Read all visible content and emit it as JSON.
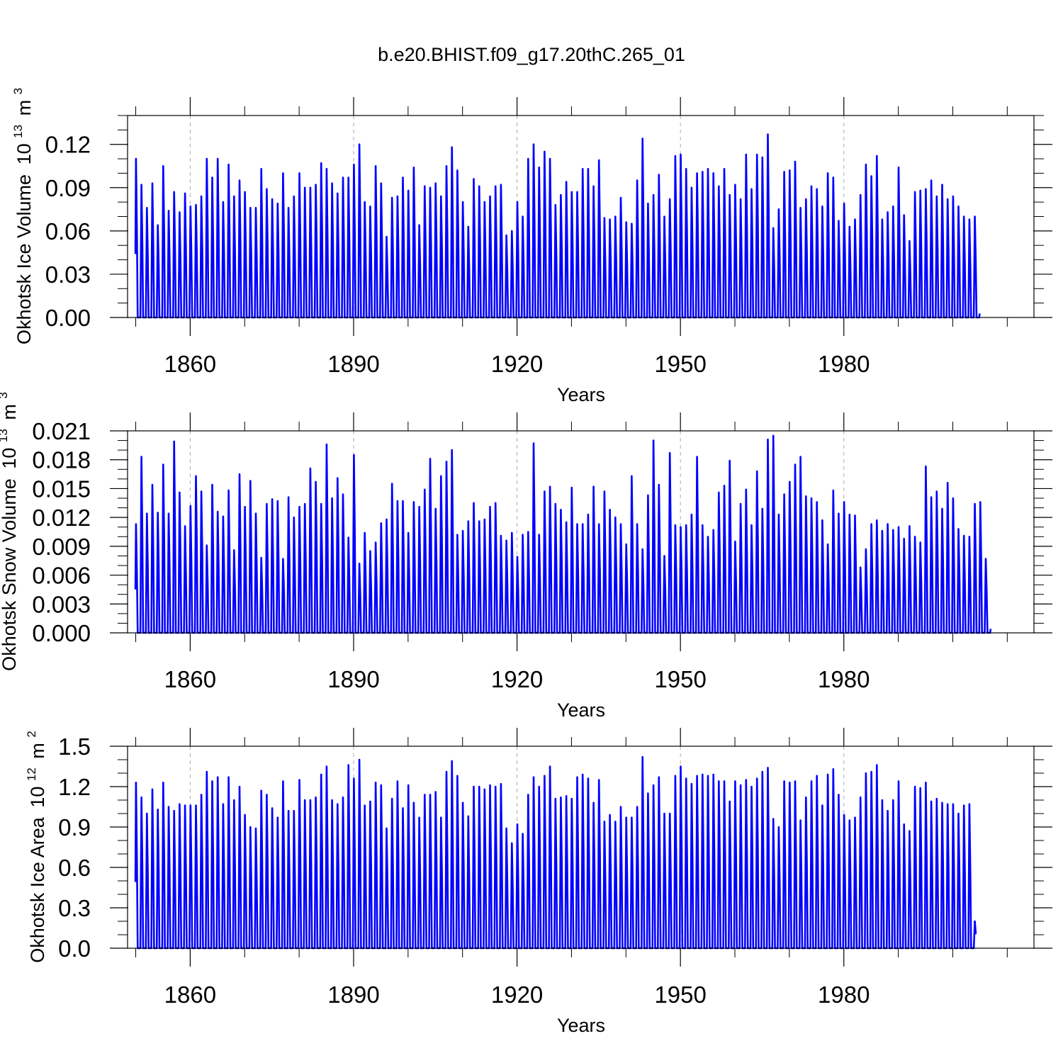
{
  "figure": {
    "title": "b.e20.BHIST.f09_g17.20thC.265_01",
    "series_color": "#0000ff",
    "gridline_color": "#aaaaaa"
  },
  "chart_data": [
    {
      "type": "line",
      "title": "",
      "xlabel": "Years",
      "ylabel": "Okhotsk Ice Volume",
      "ylabel_unit_base": "10",
      "ylabel_unit_exp": "13",
      "ylabel_unit_sym": "m",
      "ylabel_unit_sym_exp": "3",
      "grid": "vertical dashed at major x ticks",
      "legend": "none",
      "xlim": [
        1848.5,
        2014.9
      ],
      "ylim": [
        0.0,
        0.14
      ],
      "x_ticks": [
        1860,
        1890,
        1920,
        1950,
        1980
      ],
      "x_ticklabels": [
        "1860",
        "1890",
        "1920",
        "1950",
        "1980"
      ],
      "y_ticks": [
        0.0,
        0.03,
        0.06,
        0.09,
        0.12
      ],
      "y_ticklabels": [
        "0.00",
        "0.03",
        "0.06",
        "0.09",
        "0.12"
      ],
      "series": [
        {
          "x_start_year": 1850,
          "note_monthly_seasonal_cycle": true,
          "annual_max": [
            0.11,
            0.092,
            0.076,
            0.093,
            0.064,
            0.105,
            0.074,
            0.087,
            0.073,
            0.086,
            0.077,
            0.078,
            0.084,
            0.11,
            0.097,
            0.11,
            0.08,
            0.106,
            0.084,
            0.095,
            0.087,
            0.076,
            0.076,
            0.103,
            0.089,
            0.082,
            0.079,
            0.1,
            0.076,
            0.084,
            0.1,
            0.09,
            0.09,
            0.092,
            0.107,
            0.103,
            0.093,
            0.086,
            0.097,
            0.097,
            0.106,
            0.12,
            0.08,
            0.077,
            0.105,
            0.093,
            0.056,
            0.083,
            0.084,
            0.097,
            0.088,
            0.104,
            0.064,
            0.091,
            0.09,
            0.093,
            0.084,
            0.105,
            0.118,
            0.102,
            0.08,
            0.063,
            0.096,
            0.091,
            0.08,
            0.084,
            0.091,
            0.092,
            0.057,
            0.06,
            0.08,
            0.07,
            0.11,
            0.12,
            0.104,
            0.115,
            0.11,
            0.078,
            0.085,
            0.094,
            0.087,
            0.087,
            0.103,
            0.103,
            0.091,
            0.109,
            0.069,
            0.068,
            0.07,
            0.083,
            0.066,
            0.065,
            0.095,
            0.124,
            0.079,
            0.085,
            0.099,
            0.07,
            0.082,
            0.112,
            0.113,
            0.103,
            0.09,
            0.1,
            0.101,
            0.103,
            0.1,
            0.091,
            0.103,
            0.085,
            0.092,
            0.082,
            0.113,
            0.089,
            0.113,
            0.111,
            0.127,
            0.062,
            0.075,
            0.101,
            0.102,
            0.108,
            0.076,
            0.082,
            0.091,
            0.089,
            0.077,
            0.1,
            0.097,
            0.067,
            0.079,
            0.063,
            0.068,
            0.085,
            0.106,
            0.098,
            0.112,
            0.068,
            0.073,
            0.077,
            0.104,
            0.071,
            0.053,
            0.087,
            0.088,
            0.089,
            0.095,
            0.084,
            0.092,
            0.082,
            0.084,
            0.077,
            0.07,
            0.068,
            0.07
          ]
        }
      ]
    },
    {
      "type": "line",
      "title": "",
      "xlabel": "Years",
      "ylabel": "Okhotsk Snow Volume",
      "ylabel_unit_base": "10",
      "ylabel_unit_exp": "13",
      "ylabel_unit_sym": "m",
      "ylabel_unit_sym_exp": "3",
      "grid": "vertical dashed at major x ticks",
      "legend": "none",
      "xlim": [
        1848.5,
        2014.9
      ],
      "ylim": [
        0.0,
        0.021
      ],
      "x_ticks": [
        1860,
        1890,
        1920,
        1950,
        1980
      ],
      "x_ticklabels": [
        "1860",
        "1890",
        "1920",
        "1950",
        "1980"
      ],
      "y_ticks": [
        0.0,
        0.003,
        0.006,
        0.009,
        0.012,
        0.015,
        0.018,
        0.021
      ],
      "y_ticklabels": [
        "0.000",
        "0.003",
        "0.006",
        "0.009",
        "0.012",
        "0.015",
        "0.018",
        "0.021"
      ],
      "series": [
        {
          "x_start_year": 1850,
          "note_monthly_seasonal_cycle": true,
          "annual_max": [
            0.0113,
            0.0183,
            0.0124,
            0.0154,
            0.0125,
            0.0175,
            0.0124,
            0.0199,
            0.0146,
            0.0111,
            0.0132,
            0.0163,
            0.0147,
            0.0091,
            0.0154,
            0.0126,
            0.0121,
            0.0148,
            0.0086,
            0.0165,
            0.0131,
            0.0158,
            0.0124,
            0.0078,
            0.0134,
            0.0139,
            0.0137,
            0.0077,
            0.0141,
            0.012,
            0.0131,
            0.0134,
            0.0171,
            0.0157,
            0.0134,
            0.0196,
            0.014,
            0.0161,
            0.0144,
            0.0099,
            0.0185,
            0.0072,
            0.0104,
            0.0085,
            0.0094,
            0.0114,
            0.0118,
            0.0155,
            0.0137,
            0.0137,
            0.0104,
            0.0136,
            0.0131,
            0.0149,
            0.0181,
            0.0129,
            0.0163,
            0.0178,
            0.019,
            0.0102,
            0.0106,
            0.0116,
            0.0135,
            0.0116,
            0.0118,
            0.0131,
            0.0135,
            0.0101,
            0.0096,
            0.0104,
            0.0079,
            0.0102,
            0.0105,
            0.0197,
            0.0102,
            0.0147,
            0.0152,
            0.0134,
            0.0128,
            0.0115,
            0.0151,
            0.0113,
            0.0113,
            0.0123,
            0.0152,
            0.0113,
            0.0147,
            0.0128,
            0.012,
            0.0113,
            0.0092,
            0.0163,
            0.0113,
            0.0087,
            0.0143,
            0.02,
            0.0154,
            0.008,
            0.0187,
            0.0112,
            0.011,
            0.0112,
            0.0123,
            0.0183,
            0.0112,
            0.01,
            0.0107,
            0.0146,
            0.0153,
            0.0179,
            0.0095,
            0.0134,
            0.0149,
            0.0112,
            0.0168,
            0.0129,
            0.0201,
            0.0205,
            0.0123,
            0.0144,
            0.0157,
            0.0175,
            0.0183,
            0.0142,
            0.014,
            0.0136,
            0.0117,
            0.0092,
            0.0148,
            0.0124,
            0.0136,
            0.0123,
            0.0122,
            0.0068,
            0.0087,
            0.0113,
            0.0117,
            0.0106,
            0.0113,
            0.0107,
            0.011,
            0.0098,
            0.0111,
            0.01,
            0.0094,
            0.0173,
            0.0141,
            0.0147,
            0.0129,
            0.0156,
            0.014,
            0.0108,
            0.0101,
            0.01,
            0.0134,
            0.0136,
            0.0077
          ]
        }
      ]
    },
    {
      "type": "line",
      "title": "",
      "xlabel": "Years",
      "ylabel": "Okhotsk Ice Area",
      "ylabel_unit_base": "10",
      "ylabel_unit_exp": "12",
      "ylabel_unit_sym": "m",
      "ylabel_unit_sym_exp": "2",
      "grid": "vertical dashed at major x ticks",
      "legend": "none",
      "xlim": [
        1848.5,
        2014.9
      ],
      "ylim": [
        0.0,
        1.5
      ],
      "x_ticks": [
        1860,
        1890,
        1920,
        1950,
        1980
      ],
      "x_ticklabels": [
        "1860",
        "1890",
        "1920",
        "1950",
        "1980"
      ],
      "y_ticks": [
        0.0,
        0.3,
        0.6,
        0.9,
        1.2,
        1.5
      ],
      "y_ticklabels": [
        "0.0",
        "0.3",
        "0.6",
        "0.9",
        "1.2",
        "1.5"
      ],
      "series": [
        {
          "x_start_year": 1850,
          "note_monthly_seasonal_cycle": true,
          "annual_max": [
            1.23,
            1.12,
            1.0,
            1.18,
            1.03,
            1.23,
            1.05,
            1.02,
            1.07,
            1.06,
            1.06,
            1.06,
            1.14,
            1.31,
            1.24,
            1.27,
            1.07,
            1.27,
            1.1,
            1.2,
            0.99,
            0.9,
            0.89,
            1.17,
            1.14,
            1.04,
            0.97,
            1.24,
            1.02,
            1.02,
            1.25,
            1.1,
            1.1,
            1.12,
            1.29,
            1.35,
            1.1,
            1.07,
            1.12,
            1.36,
            1.26,
            1.4,
            1.06,
            1.09,
            1.23,
            1.21,
            0.89,
            1.11,
            1.24,
            1.04,
            1.21,
            1.08,
            0.97,
            1.14,
            1.14,
            1.16,
            0.97,
            1.31,
            1.39,
            1.28,
            1.08,
            0.98,
            1.2,
            1.2,
            1.18,
            1.21,
            1.2,
            1.22,
            0.89,
            0.78,
            0.92,
            0.85,
            1.14,
            1.27,
            1.2,
            1.28,
            1.35,
            1.11,
            1.12,
            1.13,
            1.11,
            1.27,
            1.29,
            1.26,
            1.08,
            1.25,
            0.94,
            0.99,
            0.94,
            1.05,
            0.97,
            0.97,
            1.05,
            1.42,
            1.15,
            1.21,
            1.27,
            1.0,
            1.0,
            1.28,
            1.35,
            1.26,
            1.22,
            1.28,
            1.29,
            1.28,
            1.29,
            1.24,
            1.24,
            1.09,
            1.24,
            1.21,
            1.25,
            1.2,
            1.26,
            1.31,
            1.34,
            0.96,
            0.9,
            1.24,
            1.23,
            1.24,
            0.95,
            1.12,
            1.24,
            1.28,
            1.06,
            1.29,
            1.33,
            1.14,
            0.99,
            0.95,
            0.97,
            1.12,
            1.3,
            1.31,
            1.36,
            1.1,
            1.02,
            1.1,
            1.24,
            0.92,
            0.87,
            1.2,
            1.19,
            1.23,
            1.09,
            1.11,
            1.08,
            1.07,
            1.07,
            1.0,
            1.06,
            1.07,
            0.2
          ]
        }
      ]
    }
  ]
}
